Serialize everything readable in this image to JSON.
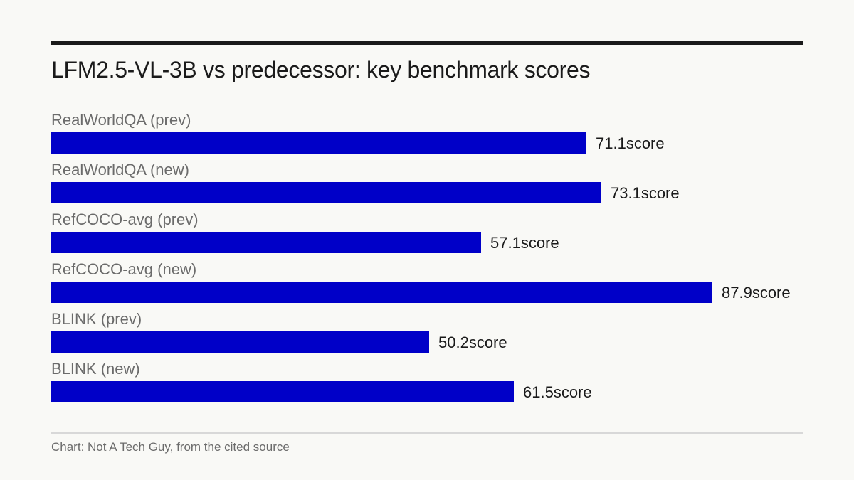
{
  "chart_data": {
    "type": "bar",
    "orientation": "horizontal",
    "title": "LFM2.5-VL-3B vs predecessor: key benchmark scores",
    "categories": [
      "RealWorldQA (prev)",
      "RealWorldQA (new)",
      "RefCOCO-avg (prev)",
      "RefCOCO-avg (new)",
      "BLINK (prev)",
      "BLINK (new)"
    ],
    "values": [
      71.1,
      73.1,
      57.1,
      87.9,
      50.2,
      61.5
    ],
    "value_suffix": "score",
    "xlim": [
      0,
      100
    ],
    "grid": false,
    "bar_color": "#0000c8",
    "source": "Chart: Not A Tech Guy, from the cited source"
  }
}
